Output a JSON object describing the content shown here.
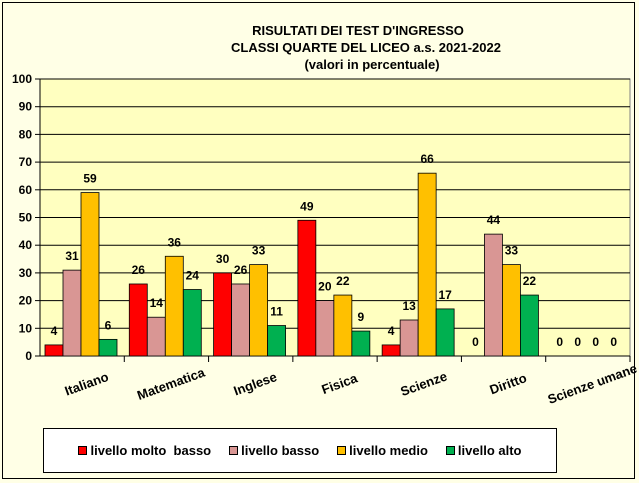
{
  "chart_data": {
    "type": "bar",
    "title": [
      "RISULTATI DEI TEST D'INGRESSO",
      "CLASSI QUARTE DEL LICEO     a.s. 2021-2022",
      "(valori in percentuale)"
    ],
    "categories": [
      "Italiano",
      "Matematica",
      "Inglese",
      "Fisica",
      "Scienze",
      "Diritto",
      "Scienze umane"
    ],
    "series": [
      {
        "name": "livello molto  basso",
        "color": "#FF0000",
        "values": [
          4,
          26,
          30,
          49,
          4,
          0,
          0
        ]
      },
      {
        "name": "livello basso",
        "color": "#D99694",
        "values": [
          31,
          14,
          26,
          20,
          13,
          44,
          0
        ]
      },
      {
        "name": "livello medio",
        "color": "#FFC000",
        "values": [
          59,
          36,
          33,
          22,
          66,
          33,
          0
        ]
      },
      {
        "name": "livello alto",
        "color": "#00B050",
        "values": [
          6,
          24,
          11,
          9,
          17,
          22,
          0
        ]
      }
    ],
    "ylim": [
      0,
      100
    ],
    "yticks": [
      0,
      10,
      20,
      30,
      40,
      50,
      60,
      70,
      80,
      90,
      100
    ],
    "grid": true,
    "legend": "bottom",
    "plot_background": "#FFFFC0",
    "xlabel": "",
    "ylabel": ""
  }
}
